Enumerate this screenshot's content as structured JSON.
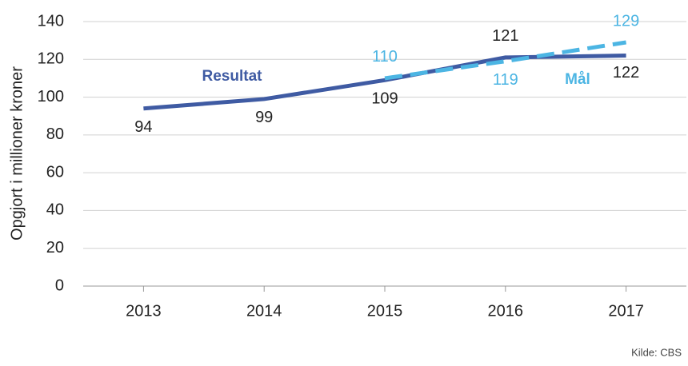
{
  "chart_data": {
    "type": "line",
    "y_label": "Opgjort i millioner kroner",
    "source": "Kilde: CBS",
    "categories": [
      "2013",
      "2014",
      "2015",
      "2016",
      "2017"
    ],
    "series": [
      {
        "name": "Resultat",
        "color": "#3f5ba3",
        "dashed": false,
        "values": [
          94,
          99,
          109,
          121,
          122
        ]
      },
      {
        "name": "Mål",
        "color": "#4cb5e3",
        "dashed": true,
        "values": [
          null,
          null,
          110,
          119,
          129
        ]
      }
    ],
    "ylim": [
      0,
      140
    ],
    "yticks": [
      0,
      20,
      40,
      60,
      80,
      100,
      120,
      140
    ],
    "grid": true
  }
}
